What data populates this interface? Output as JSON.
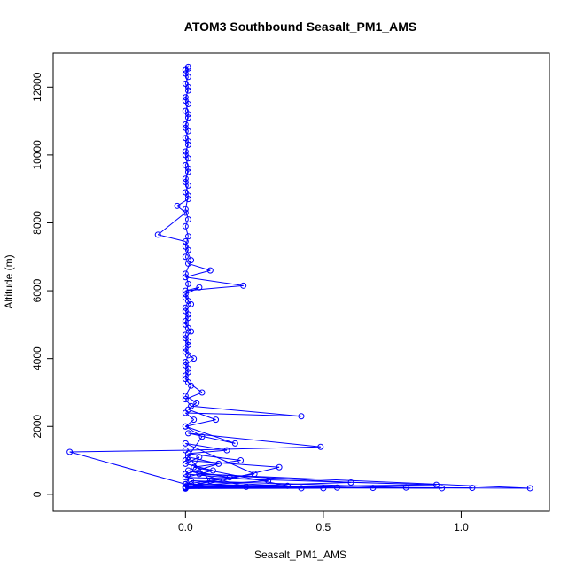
{
  "chart_data": {
    "type": "line",
    "title": "ATOM3 Southbound Seasalt_PM1_AMS",
    "xlabel": "Seasalt_PM1_AMS",
    "ylabel": "Altitude (m)",
    "xlim": [
      -0.48,
      1.32
    ],
    "ylim": [
      -500,
      13000
    ],
    "x_ticks": [
      0.0,
      0.5,
      1.0
    ],
    "x_tick_labels": [
      "0.0",
      "0.5",
      "1.0"
    ],
    "y_ticks": [
      0,
      2000,
      4000,
      6000,
      8000,
      10000,
      12000
    ],
    "y_tick_labels": [
      "0",
      "2000",
      "4000",
      "6000",
      "8000",
      "10000",
      "12000"
    ],
    "grid": false,
    "legend": "none",
    "series_color": "#0000ff",
    "series": [
      {
        "marker": "open-circle",
        "points": [
          [
            0.01,
            12600
          ],
          [
            0.0,
            12500
          ],
          [
            0.01,
            12300
          ],
          [
            0.0,
            12100
          ],
          [
            0.01,
            11900
          ],
          [
            0.0,
            11700
          ],
          [
            0.01,
            11500
          ],
          [
            0.0,
            11300
          ],
          [
            0.01,
            11100
          ],
          [
            0.0,
            10900
          ],
          [
            0.01,
            10700
          ],
          [
            0.0,
            10500
          ],
          [
            0.01,
            10300
          ],
          [
            0.0,
            10100
          ],
          [
            0.01,
            9900
          ],
          [
            0.0,
            9700
          ],
          [
            0.01,
            9500
          ],
          [
            0.0,
            9300
          ],
          [
            0.01,
            9100
          ],
          [
            0.0,
            8900
          ],
          [
            0.01,
            8700
          ],
          [
            -0.03,
            8500
          ],
          [
            0.0,
            8300
          ],
          [
            -0.1,
            7650
          ],
          [
            0.0,
            7450
          ],
          [
            0.01,
            7200
          ],
          [
            0.0,
            7000
          ],
          [
            0.01,
            6800
          ],
          [
            0.09,
            6600
          ],
          [
            0.0,
            6400
          ],
          [
            0.21,
            6150
          ],
          [
            0.0,
            6000
          ],
          [
            0.05,
            6100
          ],
          [
            0.0,
            5900
          ],
          [
            0.01,
            5700
          ],
          [
            0.0,
            5500
          ],
          [
            0.01,
            5300
          ],
          [
            0.0,
            5100
          ],
          [
            0.01,
            4900
          ],
          [
            0.0,
            4700
          ],
          [
            0.01,
            4500
          ],
          [
            0.0,
            4300
          ],
          [
            0.01,
            4100
          ],
          [
            0.0,
            3900
          ],
          [
            0.01,
            3700
          ],
          [
            0.0,
            3500
          ],
          [
            0.01,
            3300
          ],
          [
            0.06,
            3000
          ],
          [
            0.0,
            2800
          ],
          [
            0.02,
            2600
          ],
          [
            0.42,
            2300
          ],
          [
            0.0,
            2400
          ],
          [
            0.03,
            2200
          ],
          [
            0.0,
            2000
          ],
          [
            0.18,
            1500
          ],
          [
            0.01,
            1800
          ],
          [
            0.49,
            1400
          ],
          [
            0.0,
            1300
          ],
          [
            -0.42,
            1250
          ],
          [
            0.0,
            300
          ],
          [
            0.05,
            1100
          ],
          [
            0.0,
            900
          ],
          [
            0.1,
            700
          ],
          [
            0.0,
            500
          ],
          [
            0.91,
            280
          ],
          [
            0.0,
            200
          ],
          [
            0.6,
            350
          ],
          [
            0.05,
            600
          ],
          [
            1.25,
            180
          ],
          [
            0.0,
            220
          ],
          [
            1.04,
            190
          ],
          [
            0.0,
            180
          ],
          [
            0.8,
            200
          ],
          [
            0.02,
            400
          ],
          [
            0.5,
            180
          ],
          [
            0.0,
            170
          ],
          [
            0.37,
            250
          ],
          [
            0.03,
            800
          ],
          [
            0.2,
            1000
          ],
          [
            0.01,
            1200
          ],
          [
            0.15,
            1300
          ],
          [
            0.0,
            1500
          ],
          [
            0.25,
            600
          ],
          [
            0.0,
            300
          ],
          [
            0.55,
            200
          ],
          [
            0.01,
            250
          ],
          [
            0.3,
            400
          ],
          [
            0.0,
            600
          ],
          [
            0.12,
            900
          ],
          [
            0.01,
            1100
          ],
          [
            0.09,
            400
          ],
          [
            0.0,
            200
          ],
          [
            0.68,
            190
          ],
          [
            0.02,
            300
          ],
          [
            0.42,
            180
          ],
          [
            0.0,
            190
          ],
          [
            0.22,
            220
          ],
          [
            0.01,
            700
          ],
          [
            0.16,
            500
          ],
          [
            0.0,
            210
          ],
          [
            0.93,
            180
          ],
          [
            0.05,
            250
          ],
          [
            0.34,
            800
          ],
          [
            0.0,
            1000
          ],
          [
            0.06,
            1700
          ],
          [
            0.0,
            2000
          ],
          [
            0.11,
            2200
          ],
          [
            0.01,
            2500
          ],
          [
            0.04,
            2700
          ],
          [
            0.0,
            2900
          ],
          [
            0.02,
            3200
          ],
          [
            0.0,
            3400
          ],
          [
            0.01,
            3600
          ],
          [
            0.0,
            3800
          ],
          [
            0.03,
            4000
          ],
          [
            0.0,
            4200
          ],
          [
            0.01,
            4400
          ],
          [
            0.0,
            4600
          ],
          [
            0.02,
            4800
          ],
          [
            0.0,
            5000
          ],
          [
            0.01,
            5200
          ],
          [
            0.0,
            5400
          ],
          [
            0.02,
            5600
          ],
          [
            0.0,
            5800
          ],
          [
            0.01,
            6200
          ],
          [
            0.0,
            6500
          ],
          [
            0.02,
            6900
          ],
          [
            0.0,
            7300
          ],
          [
            0.01,
            7600
          ],
          [
            0.0,
            7900
          ],
          [
            0.01,
            8100
          ],
          [
            0.0,
            8400
          ],
          [
            0.01,
            8800
          ],
          [
            0.0,
            9200
          ],
          [
            0.01,
            9600
          ],
          [
            0.0,
            10000
          ],
          [
            0.01,
            10400
          ],
          [
            0.0,
            10800
          ],
          [
            0.01,
            11200
          ],
          [
            0.0,
            11600
          ],
          [
            0.01,
            12000
          ],
          [
            0.0,
            12400
          ],
          [
            0.01,
            12550
          ]
        ]
      }
    ]
  }
}
